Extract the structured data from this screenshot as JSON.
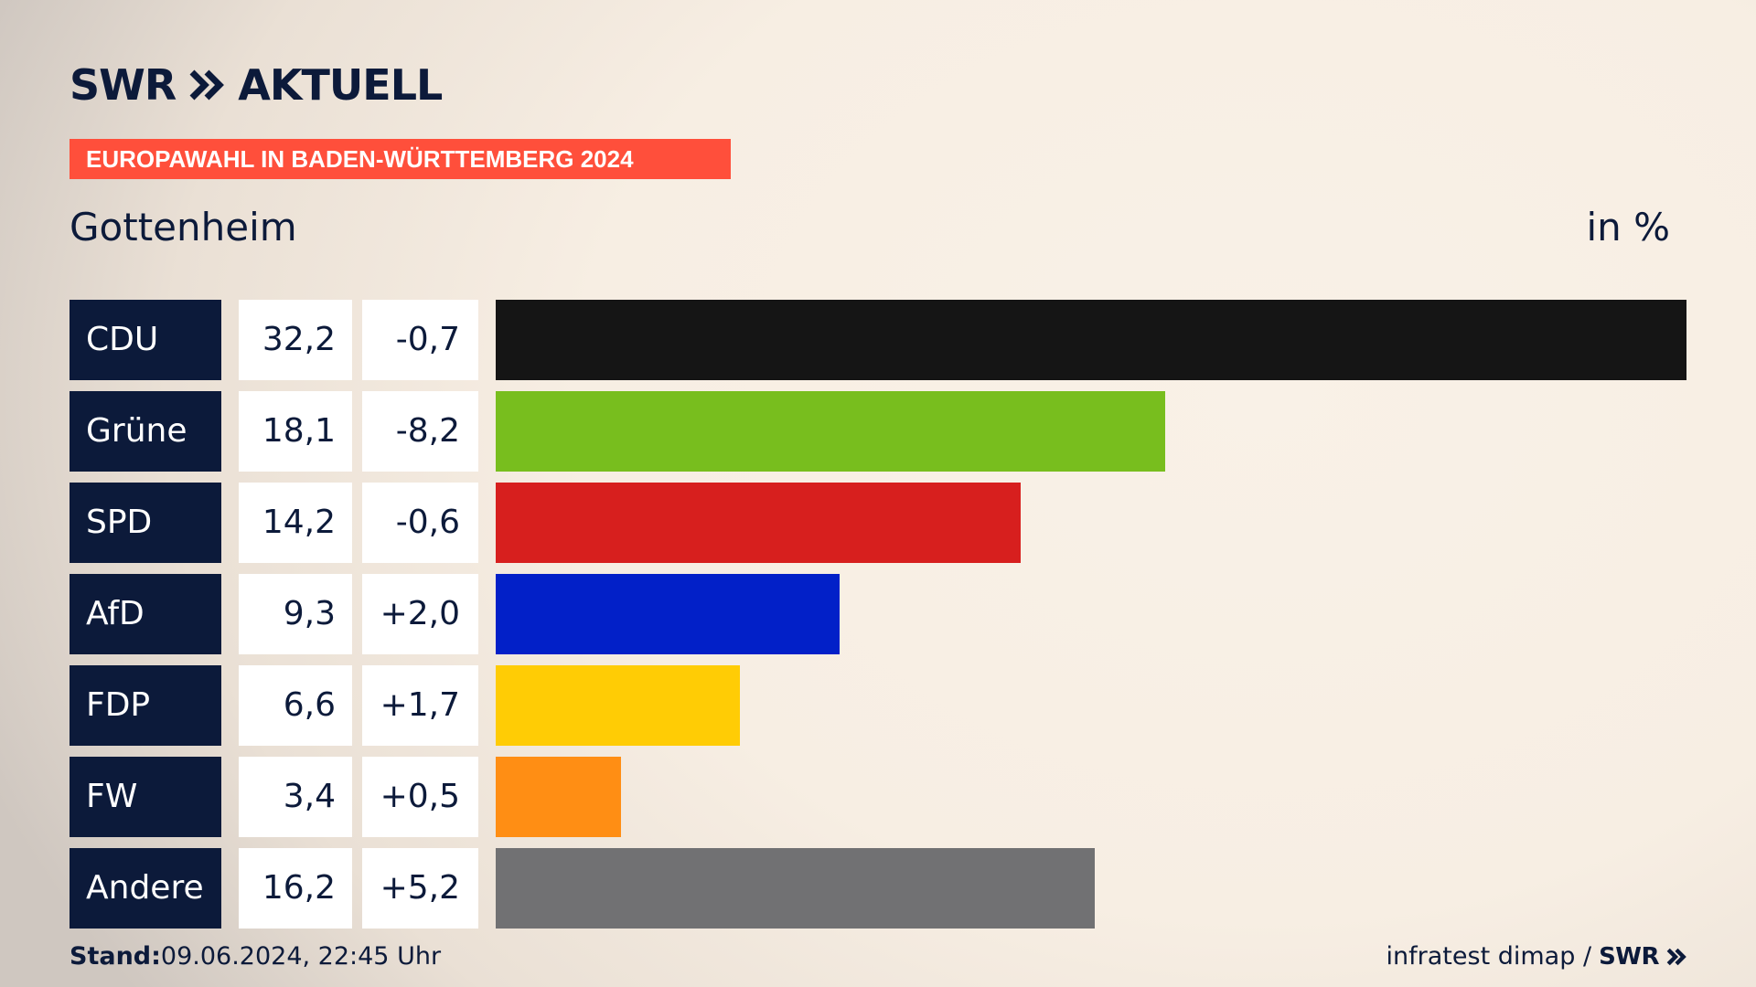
{
  "branding": {
    "logo_swr": "SWR",
    "logo_aktuell": "AKTUELL",
    "category": "EUROPAWAHL IN BADEN-WÜRTTEMBERG 2024",
    "location": "Gottenheim",
    "unit": "in %"
  },
  "chart_data": {
    "type": "bar",
    "orientation": "horizontal",
    "categories": [
      "CDU",
      "Grüne",
      "SPD",
      "AfD",
      "FDP",
      "FW",
      "Andere"
    ],
    "values": [
      32.2,
      18.1,
      14.2,
      9.3,
      6.6,
      3.4,
      16.2
    ],
    "value_labels": [
      "32,2",
      "18,1",
      "14,2",
      "9,3",
      "6,6",
      "3,4",
      "16,2"
    ],
    "diff_values": [
      -0.7,
      -8.2,
      -0.6,
      2.0,
      1.7,
      0.5,
      5.2
    ],
    "diff_labels": [
      "-0,7",
      "-8,2",
      "-0,6",
      "+2,0",
      "+1,7",
      "+0,5",
      "+5,2"
    ],
    "colors": [
      "#151515",
      "#78be1e",
      "#d71f1e",
      "#0220c8",
      "#ffcc05",
      "#ff8e14",
      "#717173"
    ],
    "title": "Gottenheim",
    "unit": "in %",
    "xlim": [
      0,
      32.2
    ]
  },
  "footer": {
    "stand_label": "Stand:",
    "stand_value": "09.06.2024, 22:45 Uhr",
    "source": "infratest dimap /",
    "source_logo": "SWR"
  },
  "colors": {
    "navy": "#0c1a3a",
    "accent": "#ff4f3b"
  },
  "icons": {
    "logo_arrows": "double-chevron-right-icon",
    "footer_arrows": "double-chevron-right-icon"
  }
}
